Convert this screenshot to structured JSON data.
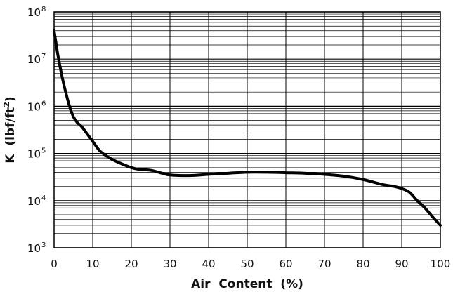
{
  "chart_data": {
    "type": "line",
    "title": "",
    "xlabel": "Air  Content  (%)",
    "ylabel": {
      "main": "K  (lbf/ft",
      "sup": "2",
      "close": ")"
    },
    "xlim": [
      0,
      100
    ],
    "ylim": [
      1000,
      100000000
    ],
    "yscale": "log",
    "grid": true,
    "legend": "none",
    "line_color": "#000000",
    "x_ticks": [
      "0",
      "10",
      "20",
      "30",
      "40",
      "50",
      "60",
      "70",
      "80",
      "90",
      "100"
    ],
    "y_ticks": [
      {
        "base": "10",
        "exp": "3",
        "value": 1000
      },
      {
        "base": "10",
        "exp": "4",
        "value": 10000
      },
      {
        "base": "10",
        "exp": "5",
        "value": 100000
      },
      {
        "base": "10",
        "exp": "6",
        "value": 1000000
      },
      {
        "base": "10",
        "exp": "7",
        "value": 10000000
      },
      {
        "base": "10",
        "exp": "8",
        "value": 100000000
      }
    ],
    "series": [
      {
        "x": [
          0,
          0.5,
          1,
          2,
          3,
          4,
          5,
          6,
          7,
          8,
          10,
          12,
          15,
          18,
          20,
          22,
          25,
          28,
          30,
          35,
          40,
          45,
          50,
          55,
          60,
          65,
          70,
          75,
          80,
          85,
          88,
          90,
          92,
          94,
          96,
          98,
          100
        ],
        "y": [
          40000000,
          22000000,
          12000000,
          4500000,
          2000000,
          1000000,
          600000,
          450000,
          380000,
          300000,
          180000,
          110000,
          75000,
          58000,
          50000,
          46000,
          44000,
          38000,
          35000,
          34000,
          36000,
          38000,
          40000,
          40000,
          39000,
          38000,
          36000,
          33000,
          28000,
          22000,
          20000,
          18000,
          15000,
          10000,
          7000,
          4500,
          3000
        ]
      }
    ]
  }
}
